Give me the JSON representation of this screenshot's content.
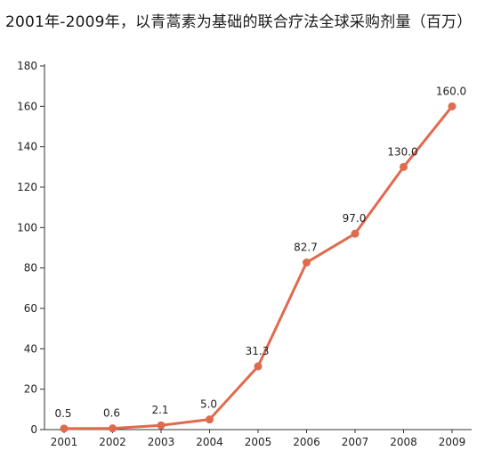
{
  "chart_data": {
    "type": "line",
    "title": "2001年-2009年，以青蒿素为基础的联合疗法全球采购剂量（百万）",
    "categories": [
      "2001",
      "2002",
      "2003",
      "2004",
      "2005",
      "2006",
      "2007",
      "2008",
      "2009"
    ],
    "series": [
      {
        "values": [
          0.5,
          0.6,
          2.1,
          5.0,
          31.3,
          82.7,
          97.0,
          130.0,
          160.0
        ],
        "data_labels": [
          "0.5",
          "0.6",
          "2.1",
          "5.0",
          "31.3",
          "82.7",
          "97.0",
          "130.0",
          "160.0"
        ]
      }
    ],
    "ylim": [
      0,
      180
    ],
    "yticks": [
      0,
      20,
      40,
      60,
      80,
      100,
      120,
      140,
      160,
      180
    ],
    "xlabel": "",
    "ylabel": "",
    "grid": false,
    "legend": "none",
    "colors": {
      "line": "#e06a4e",
      "axis": "#333333",
      "text": "#222222"
    }
  }
}
